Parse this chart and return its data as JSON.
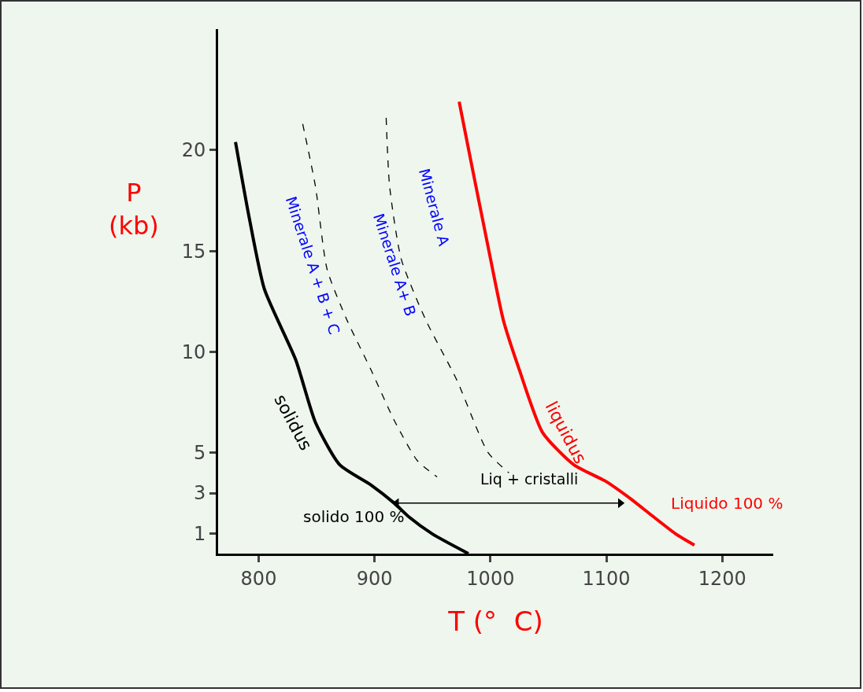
{
  "chart_data": {
    "type": "line",
    "xlabel": "T (°  C)",
    "ylabel": "P\n(kb)",
    "xlim": [
      765,
      1244
    ],
    "xticks": [
      800,
      900,
      1000,
      1100,
      1200
    ],
    "ylim": [
      0,
      26
    ],
    "yticks": [
      1,
      3,
      5,
      10,
      15,
      20
    ],
    "series": [
      {
        "name": "solidus",
        "color": "#000000",
        "x": [
          780,
          792,
          805,
          832,
          849,
          870,
          897,
          917,
          930,
          950,
          981
        ],
        "values": [
          20.4,
          16.6,
          13.1,
          9.6,
          6.5,
          4.4,
          3.4,
          2.5,
          1.8,
          0.97,
          0
        ]
      },
      {
        "name": "liquidus",
        "color": "#ff0000",
        "x": [
          973,
          984,
          998,
          1011,
          1025,
          1045,
          1072,
          1099,
          1119,
          1139,
          1160,
          1176
        ],
        "values": [
          22.4,
          19.2,
          15.2,
          11.6,
          9.1,
          6.0,
          4.4,
          3.6,
          2.8,
          1.9,
          0.97,
          0.42
        ]
      },
      {
        "color": "#000000",
        "line_style": "dashed",
        "x": [
          838,
          849,
          859,
          876,
          897,
          917,
          937,
          954
        ],
        "values": [
          21.3,
          18.2,
          14.1,
          11.6,
          9.1,
          6.6,
          4.6,
          3.8
        ]
      },
      {
        "color": "#000000",
        "line_style": "dashed",
        "x": [
          910,
          913,
          923,
          944,
          971,
          998,
          1016
        ],
        "values": [
          21.6,
          18.2,
          14.6,
          11.6,
          8.6,
          5.0,
          4.0
        ]
      },
      {
        "color": "#000000",
        "marker": "triangle",
        "x": [
          919,
          1112
        ],
        "values": [
          2.5,
          2.5
        ]
      }
    ],
    "annotations": [
      "Minerale A + B + C",
      "Minerale A+ B",
      "Minerale A",
      "Liq + cristalli",
      "solido 100 %",
      "Liquido 100 %"
    ]
  }
}
